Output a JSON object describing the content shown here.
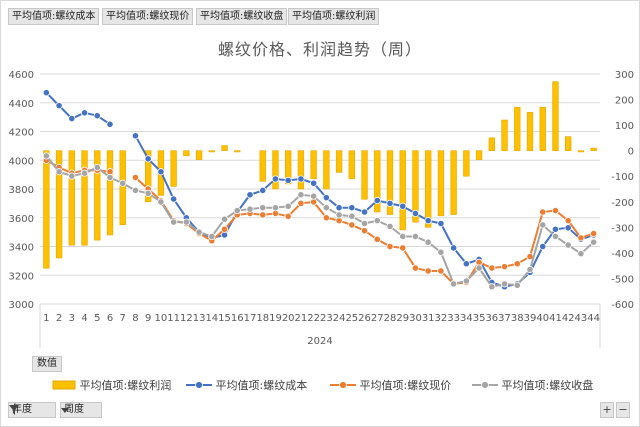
{
  "field_buttons": [
    "平均值项:螺纹成本",
    "平均值项:螺纹现价",
    "平均值项:螺纹收盘",
    "平均值项:螺纹利润"
  ],
  "values_button": "数值",
  "bottom_filters": [
    {
      "label": "年度",
      "icon": "filter-icon"
    },
    {
      "label": "周度",
      "icon": "dropdown-arrow-icon"
    }
  ],
  "zoom_buttons": [
    "+",
    "−"
  ],
  "colors": {
    "profit": "#ffc000",
    "profit_border": "#e6a800",
    "cost": "#4472c4",
    "current": "#ed7d31",
    "close": "#a5a5a5",
    "grid": "#d9d9d9",
    "text": "#595959"
  },
  "chart_data": {
    "type": "combo",
    "title": "螺纹价格、利润趋势（周）",
    "x_group_label": "2024",
    "categories": [
      "1",
      "2",
      "3",
      "4",
      "5",
      "6",
      "7",
      "8",
      "9",
      "10",
      "11",
      "12",
      "13",
      "14",
      "15",
      "16",
      "17",
      "18",
      "19",
      "20",
      "21",
      "22",
      "23",
      "24",
      "25",
      "26",
      "27",
      "28",
      "29",
      "30",
      "31",
      "32",
      "33",
      "34",
      "35",
      "36",
      "37",
      "38",
      "39",
      "40",
      "41",
      "42",
      "43",
      "44"
    ],
    "y_left": {
      "min": 3000,
      "max": 4600,
      "step": 200,
      "ticks": [
        "3000",
        "3200",
        "3400",
        "3600",
        "3800",
        "4000",
        "4200",
        "4400",
        "4600"
      ]
    },
    "y_right": {
      "min": -600,
      "max": 300,
      "step": 100,
      "ticks": [
        "-600",
        "-500",
        "-400",
        "-300",
        "-200",
        "-100",
        "0",
        "100",
        "200",
        "300"
      ]
    },
    "legend_position": "bottom",
    "grid": true,
    "series": [
      {
        "name": "平均值项:螺纹利润",
        "kind": "bar",
        "axis": "right",
        "values": [
          -460,
          -420,
          -370,
          -370,
          -350,
          -330,
          -290,
          null,
          -200,
          -175,
          -140,
          -20,
          -35,
          -5,
          20,
          -5,
          null,
          -120,
          -150,
          -130,
          -150,
          -110,
          -150,
          -85,
          -110,
          -190,
          -240,
          -250,
          -310,
          -280,
          -300,
          -255,
          -250,
          -100,
          -35,
          50,
          120,
          170,
          150,
          170,
          270,
          55,
          -5,
          10
        ]
      },
      {
        "name": "平均值项:螺纹成本",
        "kind": "line",
        "axis": "left",
        "values": [
          4470,
          4380,
          4290,
          4330,
          4310,
          4250,
          null,
          4170,
          4010,
          3920,
          3730,
          3600,
          3500,
          3460,
          3480,
          3640,
          3760,
          3790,
          3870,
          3860,
          3870,
          3840,
          3740,
          3670,
          3670,
          3640,
          3720,
          3700,
          3680,
          3630,
          3580,
          3560,
          3390,
          3280,
          3310,
          3150,
          3120,
          3140,
          3220,
          3400,
          3520,
          3530,
          3450,
          3480
        ]
      },
      {
        "name": "平均值项:螺纹现价",
        "kind": "line",
        "axis": "left",
        "values": [
          4000,
          3950,
          3910,
          3930,
          3930,
          3920,
          null,
          3880,
          3800,
          3720,
          3580,
          3560,
          3490,
          3440,
          3520,
          3620,
          3630,
          3620,
          3630,
          3610,
          3700,
          3710,
          3600,
          3580,
          3550,
          3510,
          3450,
          3400,
          3390,
          3250,
          3230,
          3230,
          3140,
          3150,
          3290,
          3250,
          3260,
          3280,
          3330,
          3640,
          3650,
          3580,
          3460,
          3490
        ]
      },
      {
        "name": "平均值项:螺纹收盘",
        "kind": "line",
        "axis": "left",
        "values": [
          4030,
          3920,
          3890,
          3910,
          3950,
          3880,
          3840,
          3790,
          3770,
          3710,
          3570,
          3570,
          3500,
          3470,
          3590,
          3650,
          3660,
          3670,
          3670,
          3680,
          3760,
          3750,
          3670,
          3620,
          3610,
          3560,
          3580,
          3540,
          3470,
          3470,
          3430,
          3360,
          3140,
          3160,
          3250,
          3120,
          3140,
          3130,
          3240,
          3550,
          3470,
          3410,
          3350,
          3430
        ]
      }
    ]
  }
}
